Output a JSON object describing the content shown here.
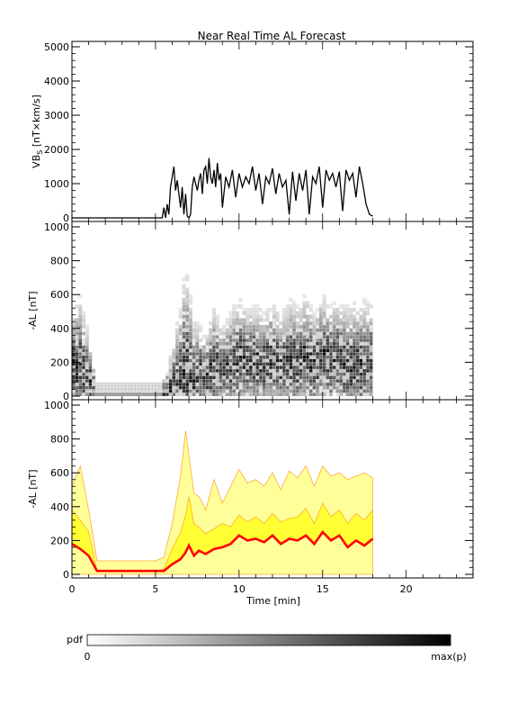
{
  "title": "Near Real Time AL Forecast",
  "colorbar": {
    "label": "pdf",
    "min_label": "0",
    "max_label": "max(p)",
    "from_color": "#ffffff",
    "to_color": "#000000"
  },
  "chart_data": [
    {
      "type": "line",
      "panel": "top",
      "title": "Near Real Time AL Forecast",
      "ylabel_main": "VB",
      "ylabel_sub": "S",
      "ylabel_rest": " [nT×km/s]",
      "xlim": [
        0,
        24
      ],
      "ylim": [
        0,
        5000
      ],
      "yticks": [
        "0",
        "1000",
        "2000",
        "3000",
        "4000",
        "5000"
      ],
      "line_color": "#000000",
      "x": [
        0,
        5.4,
        5.5,
        5.6,
        5.7,
        5.8,
        5.9,
        6.0,
        6.1,
        6.2,
        6.3,
        6.4,
        6.5,
        6.6,
        6.7,
        6.8,
        6.9,
        7.0,
        7.1,
        7.2,
        7.3,
        7.4,
        7.5,
        7.6,
        7.7,
        7.8,
        7.9,
        8.0,
        8.1,
        8.2,
        8.3,
        8.4,
        8.5,
        8.6,
        8.7,
        8.8,
        8.9,
        9.0,
        9.2,
        9.4,
        9.6,
        9.8,
        10.0,
        10.2,
        10.4,
        10.6,
        10.8,
        11.0,
        11.2,
        11.4,
        11.6,
        11.8,
        12.0,
        12.2,
        12.4,
        12.6,
        12.8,
        13.0,
        13.2,
        13.4,
        13.6,
        13.8,
        14.0,
        14.2,
        14.4,
        14.6,
        14.8,
        15.0,
        15.2,
        15.4,
        15.6,
        15.8,
        16.0,
        16.2,
        16.4,
        16.6,
        16.8,
        17.0,
        17.2,
        17.4,
        17.6,
        17.8,
        18.0
      ],
      "values": [
        0,
        0,
        300,
        0,
        400,
        100,
        900,
        1200,
        1500,
        800,
        1100,
        700,
        300,
        900,
        100,
        700,
        50,
        0,
        100,
        900,
        1200,
        1000,
        800,
        1100,
        1300,
        700,
        1400,
        1500,
        1000,
        1750,
        1200,
        1000,
        1400,
        900,
        1600,
        1100,
        1300,
        300,
        1200,
        900,
        1400,
        600,
        1300,
        900,
        1200,
        1000,
        1500,
        800,
        1300,
        400,
        1200,
        1000,
        1450,
        700,
        1300,
        900,
        1100,
        100,
        1350,
        500,
        1300,
        800,
        1400,
        100,
        1200,
        1000,
        1500,
        300,
        1400,
        1100,
        1300,
        900,
        1350,
        200,
        1400,
        1100,
        1300,
        600,
        1500,
        1000,
        400,
        100,
        50
      ]
    },
    {
      "type": "heatmap",
      "panel": "middle",
      "ylabel": "-AL [nT]",
      "xlim": [
        0,
        24
      ],
      "ylim": [
        0,
        1000
      ],
      "yticks": [
        "0",
        "200",
        "400",
        "600",
        "800",
        "1000"
      ],
      "x_start": 0,
      "x_end": 18,
      "bins_x": 90,
      "bin_height": 20,
      "quiet_interval": [
        1.5,
        5.5
      ],
      "quiet_level": 80,
      "seed": 7
    },
    {
      "type": "area",
      "panel": "bottom",
      "ylabel": "-AL [nT]",
      "xlabel": "Time [min]",
      "xlim": [
        0,
        24
      ],
      "ylim": [
        0,
        1000
      ],
      "yticks": [
        "0",
        "200",
        "400",
        "600",
        "800",
        "1000"
      ],
      "xticks": [
        "0",
        "5",
        "10",
        "15",
        "20"
      ],
      "colors": {
        "inner_band": "#ffff33",
        "outer_band": "#ffff99",
        "band_edge": "#ffaa33",
        "median": "#ff0000"
      },
      "x": [
        0,
        0.5,
        1.0,
        1.5,
        2.0,
        3.0,
        4.0,
        5.0,
        5.5,
        6.0,
        6.5,
        6.8,
        7.0,
        7.3,
        7.6,
        8.0,
        8.5,
        9.0,
        9.5,
        10.0,
        10.5,
        11.0,
        11.5,
        12.0,
        12.5,
        13.0,
        13.5,
        14.0,
        14.5,
        15.0,
        15.5,
        16.0,
        16.5,
        17.0,
        17.5,
        18.0
      ],
      "median": [
        180,
        150,
        110,
        20,
        20,
        20,
        20,
        20,
        20,
        60,
        90,
        130,
        170,
        110,
        140,
        120,
        150,
        160,
        180,
        230,
        200,
        210,
        190,
        230,
        180,
        210,
        200,
        230,
        180,
        250,
        200,
        230,
        160,
        200,
        170,
        210
      ],
      "inner_upper": [
        380,
        320,
        250,
        20,
        20,
        20,
        20,
        20,
        30,
        150,
        250,
        350,
        460,
        300,
        280,
        240,
        270,
        300,
        280,
        350,
        310,
        340,
        300,
        360,
        310,
        330,
        340,
        390,
        300,
        420,
        340,
        380,
        300,
        360,
        320,
        380
      ],
      "outer_upper": [
        520,
        640,
        380,
        80,
        80,
        80,
        80,
        80,
        100,
        300,
        580,
        850,
        700,
        480,
        460,
        380,
        560,
        420,
        520,
        620,
        540,
        560,
        520,
        600,
        500,
        610,
        570,
        640,
        520,
        640,
        580,
        600,
        560,
        580,
        600,
        570
      ]
    }
  ]
}
